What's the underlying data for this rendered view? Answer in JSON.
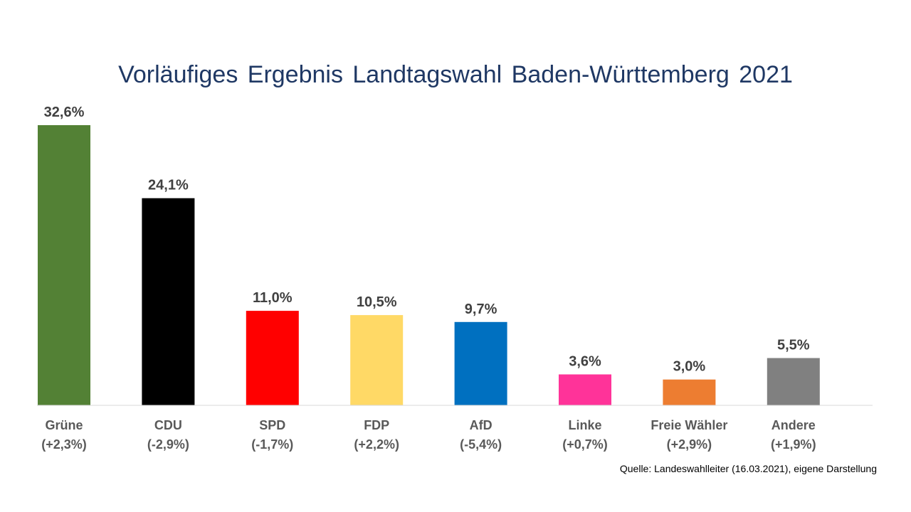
{
  "chart_data": {
    "type": "bar",
    "title": "Vorläufiges Ergebnis Landtagswahl Baden-Württemberg 2021",
    "xlabel": "",
    "ylabel": "",
    "ylim": [
      0,
      32.6
    ],
    "grid": false,
    "legend": "none",
    "categories": [
      "Grüne",
      "CDU",
      "SPD",
      "FDP",
      "AfD",
      "Linke",
      "Freie Wähler",
      "Andere"
    ],
    "changes": [
      "(+2,3%)",
      "(-2,9%)",
      "(-1,7%)",
      "(+2,2%)",
      "(-5,4%)",
      "(+0,7%)",
      "(+2,9%)",
      "(+1,9%)"
    ],
    "values": [
      32.6,
      24.1,
      11.0,
      10.5,
      9.7,
      3.6,
      3.0,
      5.5
    ],
    "value_labels": [
      "32,6%",
      "24,1%",
      "11,0%",
      "10,5%",
      "9,7%",
      "3,6%",
      "3,0%",
      "5,5%"
    ],
    "colors": [
      "#538135",
      "#000000",
      "#ff0000",
      "#ffd966",
      "#0070c0",
      "#ff3399",
      "#ed7d31",
      "#808080"
    ],
    "source": "Quelle: Landeswahlleiter (16.03.2021),  eigene Darstellung"
  }
}
